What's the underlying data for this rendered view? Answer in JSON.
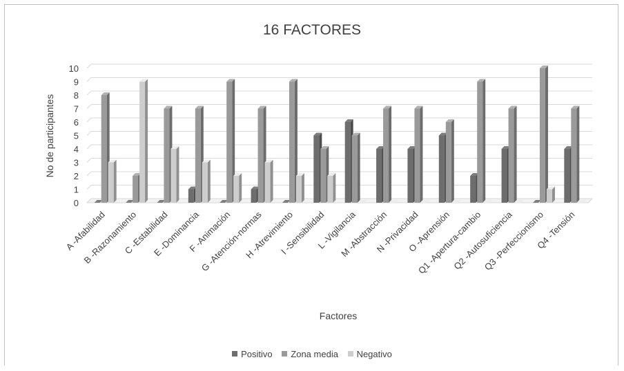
{
  "chart_data": {
    "type": "bar",
    "title": "16 FACTORES",
    "xlabel": "Factores",
    "ylabel": "No de participantes",
    "ylim": [
      0,
      10
    ],
    "yticks": [
      0,
      1,
      2,
      3,
      4,
      5,
      6,
      7,
      8,
      9,
      10
    ],
    "grid": true,
    "legend_position": "bottom",
    "categories": [
      "A -Afabilidad",
      "B -Razonamiento",
      "C -Estabilidad",
      "E -Dominancia",
      "F -Animación",
      "G -Atención-normas",
      "H -Atrevimiento",
      "I -Sensibilidad",
      "L -Vigilancia",
      "M -Abstracción",
      "N -Privacidad",
      "O -Aprensión",
      "Q1 -Apertura-cambio",
      "Q2 -Autosuficiencia",
      "Q3 -Perfeccionismo",
      "Q4 -Tensión"
    ],
    "series": [
      {
        "name": "Positivo",
        "color": "#6d6d6d",
        "values": [
          0,
          0,
          0,
          1,
          0,
          1,
          0,
          5,
          6,
          4,
          4,
          5,
          2,
          4,
          0,
          4
        ]
      },
      {
        "name": "Zona media",
        "color": "#9a9a9a",
        "values": [
          8,
          2,
          7,
          7,
          9,
          7,
          9,
          4,
          5,
          7,
          7,
          6,
          9,
          7,
          10,
          7
        ]
      },
      {
        "name": "Negativo",
        "color": "#cdcdcd",
        "values": [
          3,
          9,
          4,
          3,
          2,
          3,
          2,
          2,
          0,
          0,
          0,
          0,
          0,
          0,
          1,
          0
        ]
      }
    ]
  }
}
